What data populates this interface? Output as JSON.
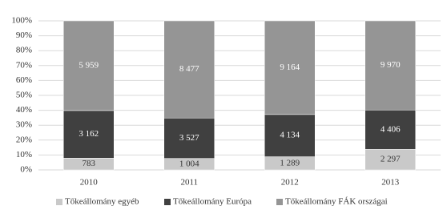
{
  "chart_data": {
    "type": "bar",
    "stacking": "percent",
    "categories": [
      "2010",
      "2011",
      "2012",
      "2013"
    ],
    "series": [
      {
        "name": "Tőkeállomány egyéb",
        "color": "#c9c9c9",
        "label_color": "#333333",
        "values": [
          783,
          1004,
          1289,
          2297
        ],
        "value_labels": [
          "783",
          "1 004",
          "1 289",
          "2 297"
        ]
      },
      {
        "name": "Tőkeállomány Európa",
        "color": "#404040",
        "label_color": "#ffffff",
        "values": [
          3162,
          3527,
          4134,
          4406
        ],
        "value_labels": [
          "3 162",
          "3 527",
          "4 134",
          "4 406"
        ]
      },
      {
        "name": "Tőkeállomány FÁK országai",
        "color": "#959595",
        "label_color": "#ffffff",
        "values": [
          5959,
          8477,
          9164,
          9970
        ],
        "value_labels": [
          "5 959",
          "8 477",
          "9 164",
          "9 970"
        ]
      }
    ],
    "ylim": [
      0,
      100
    ],
    "yticks": [
      {
        "value": 0,
        "label": "0%"
      },
      {
        "value": 10,
        "label": "10%"
      },
      {
        "value": 20,
        "label": "20%"
      },
      {
        "value": 30,
        "label": "30%"
      },
      {
        "value": 40,
        "label": "40%"
      },
      {
        "value": 50,
        "label": "50%"
      },
      {
        "value": 60,
        "label": "60%"
      },
      {
        "value": 70,
        "label": "70%"
      },
      {
        "value": 80,
        "label": "80%"
      },
      {
        "value": 90,
        "label": "90%"
      },
      {
        "value": 100,
        "label": "100%"
      }
    ],
    "grid": true,
    "legend": "bottom"
  }
}
